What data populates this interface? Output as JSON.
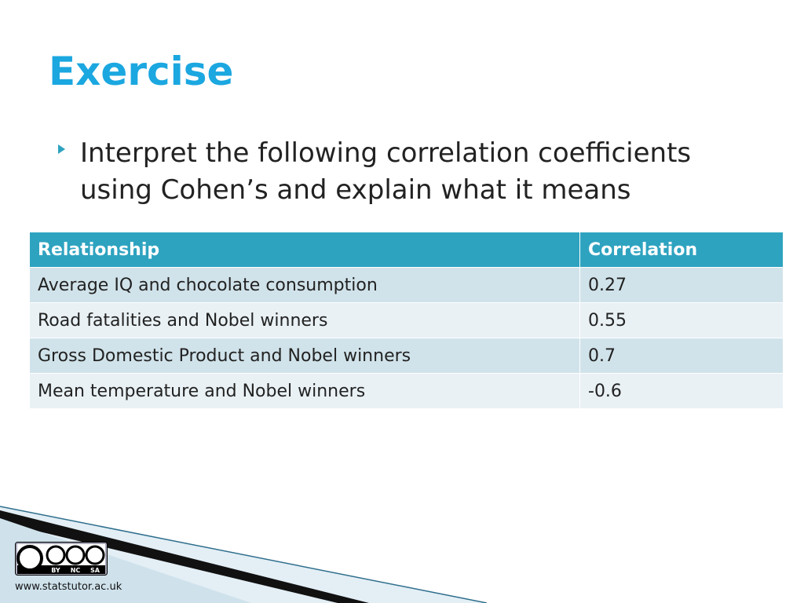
{
  "slide": {
    "title": "Exercise",
    "bullet_lines": [
      "Interpret the following correlation coefficients",
      "using Cohen’s and explain what it means"
    ],
    "table": {
      "header": [
        "Relationship",
        "Correlation"
      ],
      "rows": [
        [
          "Average IQ and chocolate consumption",
          0.27
        ],
        [
          "Road fatalities and Nobel winners",
          0.55
        ],
        [
          "Gross Domestic Product and Nobel winners",
          0.7
        ],
        [
          "Mean temperature and Nobel winners",
          -0.6
        ]
      ]
    },
    "license": [
      "BY",
      "NC",
      "SA"
    ],
    "footer": "www.statstutor.ac.uk"
  }
}
